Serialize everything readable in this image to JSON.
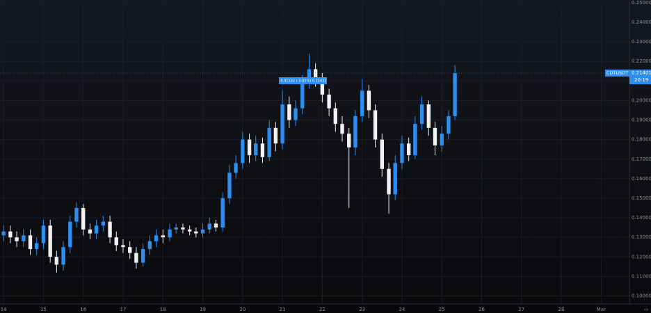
{
  "chart_data": {
    "type": "candlestick",
    "symbol": "CDTUSDT",
    "last_price": 0.21401,
    "countdown": "20:19",
    "measure_label": "-0.01132 (-5.03%) 0.21432",
    "up_color": "#2a8ff0",
    "down_color": "#f2f2f2",
    "grid": true,
    "x": [
      14,
      14.17,
      14.33,
      14.5,
      14.67,
      14.83,
      15,
      15.17,
      15.33,
      15.5,
      15.67,
      15.83,
      16,
      16.17,
      16.33,
      16.5,
      16.67,
      16.83,
      17,
      17.17,
      17.33,
      17.5,
      17.67,
      17.83,
      18,
      18.17,
      18.33,
      18.5,
      18.67,
      18.83,
      19,
      19.17,
      19.33,
      19.5,
      19.67,
      19.83,
      20,
      20.17,
      20.33,
      20.5,
      20.67,
      20.83,
      21,
      21.17,
      21.33,
      21.5,
      21.67,
      21.83,
      22,
      22.17,
      22.33,
      22.5,
      22.67,
      22.83,
      23,
      23.17,
      23.33,
      23.5,
      23.67,
      23.83,
      24,
      24.17,
      24.33,
      24.5,
      24.67,
      24.83,
      25,
      25.17,
      25.33
    ],
    "open": [
      0.131,
      0.133,
      0.13,
      0.128,
      0.131,
      0.124,
      0.127,
      0.136,
      0.12,
      0.116,
      0.125,
      0.138,
      0.145,
      0.134,
      0.132,
      0.136,
      0.138,
      0.13,
      0.126,
      0.125,
      0.122,
      0.117,
      0.124,
      0.128,
      0.131,
      0.13,
      0.134,
      0.135,
      0.134,
      0.133,
      0.132,
      0.134,
      0.137,
      0.135,
      0.15,
      0.163,
      0.168,
      0.18,
      0.172,
      0.178,
      0.171,
      0.186,
      0.178,
      0.198,
      0.19,
      0.196,
      0.209,
      0.216,
      0.211,
      0.203,
      0.196,
      0.188,
      0.183,
      0.176,
      0.192,
      0.205,
      0.195,
      0.18,
      0.165,
      0.152,
      0.168,
      0.178,
      0.172,
      0.188,
      0.198,
      0.186,
      0.177,
      0.183,
      0.192
    ],
    "high": [
      0.136,
      0.136,
      0.133,
      0.134,
      0.134,
      0.13,
      0.139,
      0.139,
      0.123,
      0.128,
      0.141,
      0.148,
      0.147,
      0.137,
      0.139,
      0.141,
      0.141,
      0.133,
      0.129,
      0.128,
      0.125,
      0.127,
      0.131,
      0.134,
      0.134,
      0.137,
      0.137,
      0.137,
      0.136,
      0.135,
      0.137,
      0.14,
      0.139,
      0.153,
      0.167,
      0.172,
      0.184,
      0.183,
      0.182,
      0.181,
      0.19,
      0.189,
      0.205,
      0.202,
      0.2,
      0.213,
      0.224,
      0.219,
      0.214,
      0.206,
      0.199,
      0.192,
      0.186,
      0.195,
      0.211,
      0.208,
      0.198,
      0.183,
      0.168,
      0.172,
      0.182,
      0.181,
      0.192,
      0.202,
      0.2,
      0.189,
      0.187,
      0.195,
      0.218
    ],
    "low": [
      0.128,
      0.127,
      0.125,
      0.125,
      0.121,
      0.121,
      0.124,
      0.117,
      0.112,
      0.113,
      0.122,
      0.135,
      0.131,
      0.129,
      0.129,
      0.133,
      0.127,
      0.123,
      0.122,
      0.119,
      0.114,
      0.115,
      0.121,
      0.125,
      0.127,
      0.128,
      0.132,
      0.132,
      0.131,
      0.13,
      0.13,
      0.132,
      0.133,
      0.133,
      0.147,
      0.16,
      0.165,
      0.168,
      0.169,
      0.168,
      0.169,
      0.174,
      0.175,
      0.186,
      0.187,
      0.193,
      0.206,
      0.207,
      0.199,
      0.192,
      0.184,
      0.179,
      0.145,
      0.172,
      0.189,
      0.191,
      0.176,
      0.161,
      0.142,
      0.149,
      0.165,
      0.169,
      0.17,
      0.185,
      0.182,
      0.172,
      0.174,
      0.18,
      0.19
    ],
    "close": [
      0.133,
      0.13,
      0.128,
      0.131,
      0.124,
      0.127,
      0.136,
      0.12,
      0.116,
      0.125,
      0.138,
      0.145,
      0.134,
      0.132,
      0.136,
      0.138,
      0.13,
      0.126,
      0.125,
      0.122,
      0.117,
      0.124,
      0.128,
      0.131,
      0.13,
      0.134,
      0.135,
      0.134,
      0.133,
      0.132,
      0.134,
      0.137,
      0.135,
      0.15,
      0.163,
      0.168,
      0.18,
      0.172,
      0.178,
      0.171,
      0.186,
      0.178,
      0.198,
      0.19,
      0.196,
      0.209,
      0.216,
      0.211,
      0.203,
      0.196,
      0.188,
      0.183,
      0.176,
      0.192,
      0.205,
      0.195,
      0.18,
      0.165,
      0.152,
      0.168,
      0.178,
      0.172,
      0.188,
      0.198,
      0.186,
      0.177,
      0.183,
      0.192,
      0.214
    ],
    "ylim": [
      0.0959,
      0.2514
    ],
    "yticks": [
      {
        "value": 0.25,
        "label": "0.25000"
      },
      {
        "value": 0.24,
        "label": "0.24000"
      },
      {
        "value": 0.23,
        "label": "0.23000"
      },
      {
        "value": 0.22,
        "label": "0.22000"
      },
      {
        "value": 0.21,
        "label": "0.21000"
      },
      {
        "value": 0.2,
        "label": "0.20000"
      },
      {
        "value": 0.19,
        "label": "0.19000"
      },
      {
        "value": 0.18,
        "label": "0.18000"
      },
      {
        "value": 0.17,
        "label": "0.17000"
      },
      {
        "value": 0.16,
        "label": "0.16000"
      },
      {
        "value": 0.15,
        "label": "0.15000"
      },
      {
        "value": 0.14,
        "label": "0.14000"
      },
      {
        "value": 0.13,
        "label": "0.13000"
      },
      {
        "value": 0.12,
        "label": "0.12000"
      },
      {
        "value": 0.11,
        "label": "0.11000"
      },
      {
        "value": 0.1,
        "label": "0.10000"
      }
    ],
    "xlim": [
      13.91,
      29.71
    ],
    "xticks": [
      14,
      15,
      16,
      17,
      18,
      19,
      20,
      21,
      22,
      23,
      24,
      25,
      26,
      27,
      28,
      {
        "value": 29,
        "label": "Mar"
      }
    ]
  }
}
